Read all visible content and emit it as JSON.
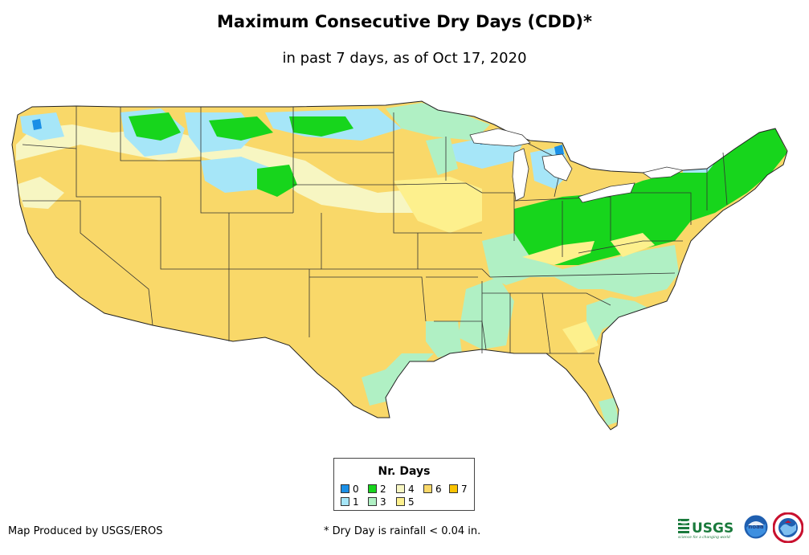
{
  "header": {
    "title": "Maximum Consecutive Dry Days (CDD)*",
    "subtitle": "in past 7 days, as of Oct 17, 2020"
  },
  "legend": {
    "title": "Nr. Days",
    "items": [
      {
        "label": "0",
        "color": "#1a8fe6"
      },
      {
        "label": "1",
        "color": "#a6e6f8"
      },
      {
        "label": "2",
        "color": "#17d51c"
      },
      {
        "label": "3",
        "color": "#b0f0c4"
      },
      {
        "label": "4",
        "color": "#f7f6c2"
      },
      {
        "label": "5",
        "color": "#fdf08d"
      },
      {
        "label": "6",
        "color": "#f9d869"
      },
      {
        "label": "7",
        "color": "#f9c300"
      }
    ]
  },
  "footer": {
    "credit": "Map Produced by USGS/EROS",
    "note": "* Dry Day is rainfall < 0.04 in."
  },
  "logos": {
    "usgs": "USGS",
    "usgs_tagline": "science for a changing world",
    "noaa": "noaa"
  }
}
